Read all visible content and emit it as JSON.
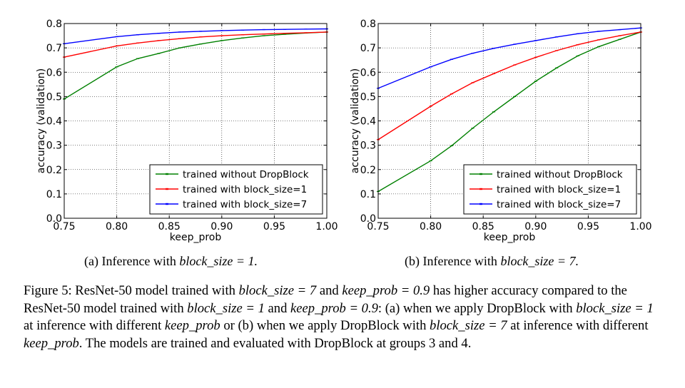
{
  "figure": {
    "subcaptions": {
      "a_prefix": "(a) Inference with ",
      "a_math": "block_size = 1.",
      "b_prefix": "(b) Inference with ",
      "b_math": "block_size = 7."
    },
    "caption": [
      {
        "t": "Figure 5: ResNet-50 model trained with ",
        "i": false
      },
      {
        "t": "block_size = 7",
        "i": true
      },
      {
        "t": " and ",
        "i": false
      },
      {
        "t": "keep_prob = 0.9",
        "i": true
      },
      {
        "t": " has higher accuracy compared to the ResNet-50 model trained with ",
        "i": false
      },
      {
        "t": "block_size = 1",
        "i": true
      },
      {
        "t": " and ",
        "i": false
      },
      {
        "t": "keep_prob = 0.9",
        "i": true
      },
      {
        "t": ": (a) when we apply DropBlock with ",
        "i": false
      },
      {
        "t": "block_size = 1",
        "i": true
      },
      {
        "t": " at inference with different ",
        "i": false
      },
      {
        "t": "keep_prob",
        "i": true
      },
      {
        "t": " or (b) when we apply DropBlock with ",
        "i": false
      },
      {
        "t": "block_size = 7",
        "i": true
      },
      {
        "t": " at inference with different ",
        "i": false
      },
      {
        "t": "keep_prob",
        "i": true
      },
      {
        "t": ". The models are trained and evaluated with DropBlock at groups 3 and 4.",
        "i": false
      }
    ]
  },
  "chart_data": [
    {
      "type": "line",
      "title": "",
      "xlabel": "keep_prob",
      "ylabel": "accuracy (validation)",
      "xlim": [
        0.75,
        1.0
      ],
      "ylim": [
        0.0,
        0.8
      ],
      "xticks": [
        "0.75",
        "0.80",
        "0.85",
        "0.90",
        "0.95",
        "1.00"
      ],
      "yticks": [
        "0.0",
        "0.1",
        "0.2",
        "0.3",
        "0.4",
        "0.5",
        "0.6",
        "0.7",
        "0.8"
      ],
      "grid": true,
      "legend_position": "lower-right",
      "x": [
        0.75,
        0.8,
        0.82,
        0.84,
        0.86,
        0.88,
        0.9,
        0.92,
        0.94,
        0.96,
        0.98,
        1.0
      ],
      "series": [
        {
          "name": "trained without DropBlock",
          "color": "#008000",
          "values": [
            0.49,
            0.622,
            0.656,
            0.677,
            0.7,
            0.716,
            0.73,
            0.741,
            0.75,
            0.756,
            0.761,
            0.765
          ]
        },
        {
          "name": "trained with block_size=1",
          "color": "#ff0000",
          "values": [
            0.662,
            0.708,
            0.72,
            0.73,
            0.738,
            0.745,
            0.75,
            0.754,
            0.757,
            0.76,
            0.762,
            0.765
          ]
        },
        {
          "name": "trained with block_size=7",
          "color": "#0000ff",
          "values": [
            0.717,
            0.746,
            0.754,
            0.76,
            0.765,
            0.768,
            0.771,
            0.773,
            0.775,
            0.776,
            0.777,
            0.778
          ]
        }
      ]
    },
    {
      "type": "line",
      "title": "",
      "xlabel": "keep_prob",
      "ylabel": "accuracy (validation)",
      "xlim": [
        0.75,
        1.0
      ],
      "ylim": [
        0.0,
        0.8
      ],
      "xticks": [
        "0.75",
        "0.80",
        "0.85",
        "0.90",
        "0.95",
        "1.00"
      ],
      "yticks": [
        "0.0",
        "0.1",
        "0.2",
        "0.3",
        "0.4",
        "0.5",
        "0.6",
        "0.7",
        "0.8"
      ],
      "grid": true,
      "legend_position": "lower-right",
      "x": [
        0.75,
        0.8,
        0.82,
        0.84,
        0.86,
        0.88,
        0.9,
        0.92,
        0.94,
        0.96,
        0.98,
        1.0
      ],
      "series": [
        {
          "name": "trained without DropBlock",
          "color": "#008000",
          "values": [
            0.11,
            0.236,
            0.298,
            0.37,
            0.437,
            0.5,
            0.563,
            0.618,
            0.667,
            0.705,
            0.735,
            0.765
          ]
        },
        {
          "name": "trained with block_size=1",
          "color": "#ff0000",
          "values": [
            0.323,
            0.46,
            0.511,
            0.557,
            0.594,
            0.63,
            0.661,
            0.689,
            0.713,
            0.733,
            0.75,
            0.765
          ]
        },
        {
          "name": "trained with block_size=7",
          "color": "#0000ff",
          "values": [
            0.534,
            0.622,
            0.653,
            0.678,
            0.698,
            0.715,
            0.73,
            0.745,
            0.758,
            0.768,
            0.775,
            0.782
          ]
        }
      ]
    }
  ]
}
